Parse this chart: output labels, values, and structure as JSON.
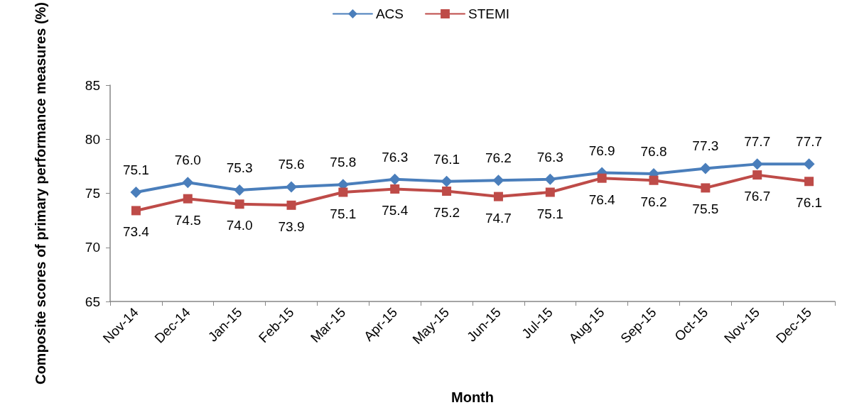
{
  "chart_data": {
    "type": "line",
    "xlabel": "Month",
    "ylabel": "Composite scores of primary performance measures (%)",
    "categories": [
      "Nov-14",
      "Dec-14",
      "Jan-15",
      "Feb-15",
      "Mar-15",
      "Apr-15",
      "May-15",
      "Jun-15",
      "Jul-15",
      "Aug-15",
      "Sep-15",
      "Oct-15",
      "Nov-15",
      "Dec-15"
    ],
    "series": [
      {
        "name": "ACS",
        "color": "#4a7ebb",
        "marker": "diamond",
        "values": [
          75.1,
          76.0,
          75.3,
          75.6,
          75.8,
          76.3,
          76.1,
          76.2,
          76.3,
          76.9,
          76.8,
          77.3,
          77.7,
          77.7
        ],
        "value_labels": [
          "75.1",
          "76.0",
          "75.3",
          "75.6",
          "75.8",
          "76.3",
          "76.1",
          "76.2",
          "76.3",
          "76.9",
          "76.8",
          "77.3",
          "77.7",
          "77.7"
        ]
      },
      {
        "name": "STEMI",
        "color": "#be4b48",
        "marker": "square",
        "values": [
          73.4,
          74.5,
          74.0,
          73.9,
          75.1,
          75.4,
          75.2,
          74.7,
          75.1,
          76.4,
          76.2,
          75.5,
          76.7,
          76.1
        ],
        "value_labels": [
          "73.4",
          "74.5",
          "74.0",
          "73.9",
          "75.1",
          "75.4",
          "75.2",
          "74.7",
          "75.1",
          "76.4",
          "76.2",
          "75.5",
          "76.7",
          "76.1"
        ]
      }
    ],
    "ylim": [
      65,
      85
    ],
    "yticks": [
      65,
      70,
      75,
      80,
      85
    ],
    "grid": false,
    "legend": "top"
  }
}
